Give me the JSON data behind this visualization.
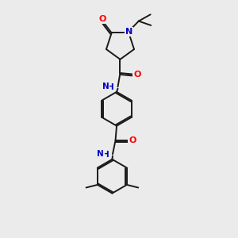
{
  "background_color": "#ebebeb",
  "bond_color": "#1a1a1a",
  "atom_colors": {
    "N": "#0000cc",
    "O": "#ff0000",
    "NH": "#0000cc"
  },
  "figsize": [
    3.0,
    3.0
  ],
  "dpi": 100
}
